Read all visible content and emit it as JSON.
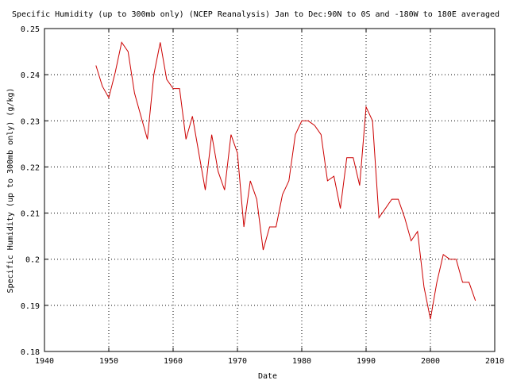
{
  "chart_data": {
    "type": "line",
    "title": "Specific Humidity (up to 300mb only) (NCEP Reanalysis) Jan to Dec:90N to 0S and -180W to 180E averaged",
    "xlabel": "Date",
    "ylabel": "Specific Humidity (up to 300mb only) (g/kg)",
    "xlim": [
      1940,
      2010
    ],
    "ylim": [
      0.18,
      0.25
    ],
    "x_ticks": [
      1940,
      1950,
      1960,
      1970,
      1980,
      1990,
      2000,
      2010
    ],
    "x_tick_labels": [
      "1940",
      "1950",
      "1960",
      "1970",
      "1980",
      "1990",
      "2000",
      "2010"
    ],
    "y_ticks": [
      0.18,
      0.19,
      0.2,
      0.21,
      0.22,
      0.23,
      0.24,
      0.25
    ],
    "y_tick_labels": [
      "0.18",
      "0.19",
      "0.2",
      "0.21",
      "0.22",
      "0.23",
      "0.24",
      "0.25"
    ],
    "grid": true,
    "line_color": "#cc0000",
    "series": [
      {
        "x": [
          1948,
          1949,
          1950,
          1951,
          1952,
          1953,
          1954,
          1955,
          1956,
          1957,
          1958,
          1959,
          1960,
          1961,
          1962,
          1963,
          1964,
          1965,
          1966,
          1967,
          1968,
          1969,
          1970,
          1971,
          1972,
          1973,
          1974,
          1975,
          1976,
          1977,
          1978,
          1979,
          1980,
          1981,
          1982,
          1983,
          1984,
          1985,
          1986,
          1987,
          1988,
          1989,
          1990,
          1991,
          1992,
          1993,
          1994,
          1995,
          1996,
          1997,
          1998,
          1999,
          2000,
          2001,
          2002,
          2003,
          2004,
          2005,
          2006,
          2007
        ],
        "values": [
          0.242,
          0.2375,
          0.235,
          0.2405,
          0.247,
          0.245,
          0.236,
          0.231,
          0.226,
          0.24,
          0.247,
          0.239,
          0.237,
          0.237,
          0.226,
          0.231,
          0.223,
          0.215,
          0.227,
          0.219,
          0.215,
          0.227,
          0.223,
          0.207,
          0.217,
          0.213,
          0.202,
          0.207,
          0.207,
          0.214,
          0.217,
          0.227,
          0.23,
          0.23,
          0.229,
          0.227,
          0.217,
          0.218,
          0.211,
          0.222,
          0.222,
          0.216,
          0.233,
          0.23,
          0.209,
          0.211,
          0.213,
          0.213,
          0.209,
          0.204,
          0.206,
          0.194,
          0.187,
          0.195,
          0.201,
          0.2,
          0.2,
          0.195,
          0.195,
          0.191
        ]
      }
    ]
  }
}
